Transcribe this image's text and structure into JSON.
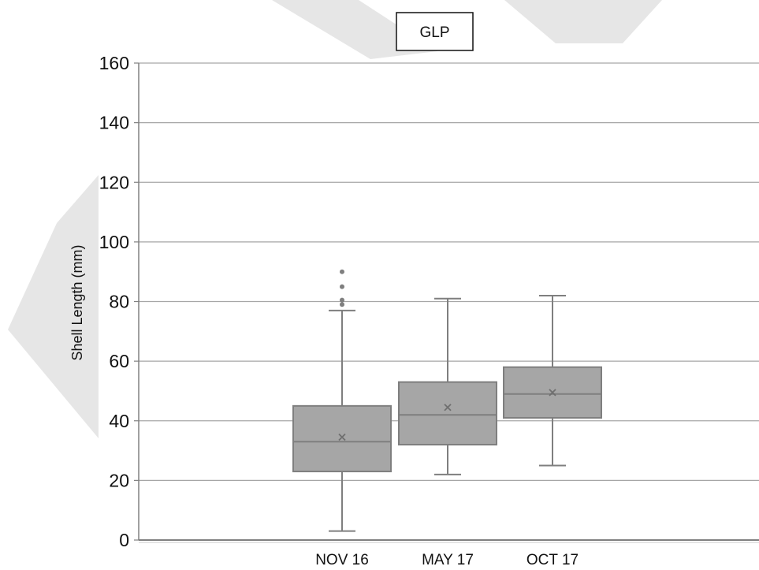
{
  "chart_data": {
    "type": "box",
    "title": "GLP",
    "xlabel": "",
    "ylabel": "Shell Length (mm)",
    "ylim": [
      0,
      160
    ],
    "yticks": [
      0,
      20,
      40,
      60,
      80,
      100,
      120,
      140,
      160
    ],
    "grid": true,
    "categories": [
      "NOV 16",
      "MAY 17",
      "OCT 17"
    ],
    "boxes": [
      {
        "category": "NOV 16",
        "min": 3,
        "q1": 23,
        "median": 33,
        "q3": 45,
        "max": 77,
        "mean": 34.5,
        "outliers": [
          79,
          80.5,
          85,
          90
        ]
      },
      {
        "category": "MAY 17",
        "min": 22,
        "q1": 32,
        "median": 42,
        "q3": 53,
        "max": 81,
        "mean": 44.5,
        "outliers": []
      },
      {
        "category": "OCT 17",
        "min": 25,
        "q1": 41,
        "median": 49,
        "q3": 58,
        "max": 82,
        "mean": 49.5,
        "outliers": []
      }
    ],
    "colors": {
      "box_fill": "#a6a6a6",
      "box_stroke": "#7f7f7f",
      "grid": "#a6a6a6",
      "axis": "#808080",
      "mean_marker": "#6f6f6f",
      "watermark": "#e6e6e6"
    }
  }
}
